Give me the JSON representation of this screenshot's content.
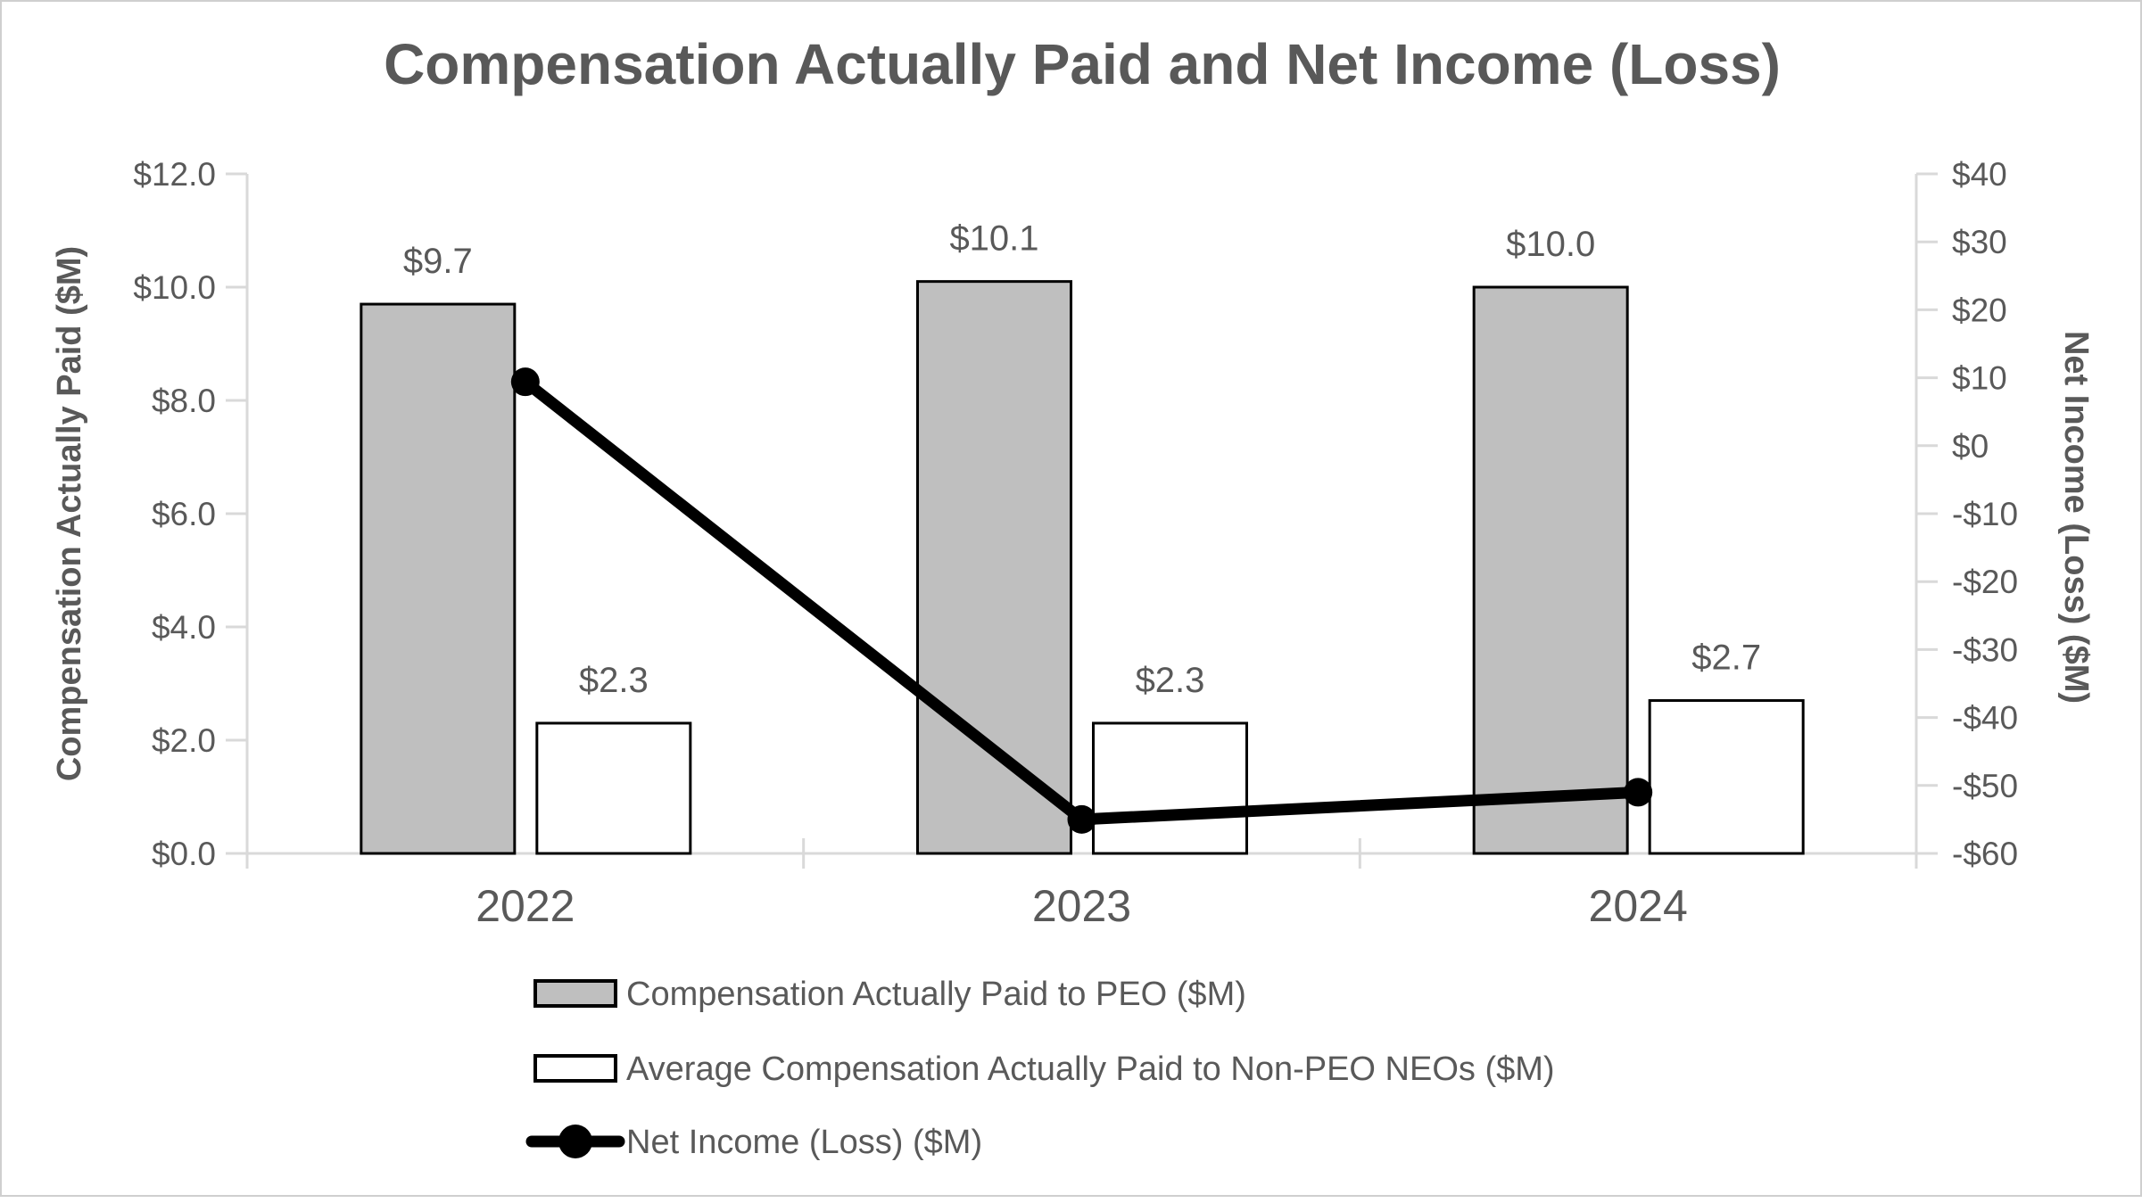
{
  "title": "Compensation Actually Paid and Net Income (Loss)",
  "colors": {
    "text": "#595959",
    "axis_line": "#d9d9d9",
    "bar_gray_fill": "#bfbfbf",
    "bar_white_fill": "#ffffff",
    "bar_border": "#000000",
    "line_color": "#000000",
    "background": "#ffffff"
  },
  "chart_data": {
    "type": "combo",
    "title": "Compensation Actually Paid and Net Income (Loss)",
    "categories": [
      "2022",
      "2023",
      "2024"
    ],
    "series": [
      {
        "name": "Compensation Actually Paid to PEO ($M)",
        "type": "bar",
        "axis": "left",
        "values": [
          9.7,
          10.1,
          10.0
        ],
        "labels": [
          "$9.7",
          "$10.1",
          "$10.0"
        ]
      },
      {
        "name": "Average Compensation Actually Paid to Non-PEO NEOs ($M)",
        "type": "bar",
        "axis": "left",
        "values": [
          2.3,
          2.3,
          2.7
        ],
        "labels": [
          "$2.3",
          "$2.3",
          "$2.7"
        ]
      },
      {
        "name": "Net Income (Loss) ($M)",
        "type": "line",
        "axis": "right",
        "values": [
          9.4,
          -55,
          -51
        ],
        "labels": []
      }
    ],
    "left_axis": {
      "title": "Compensation Actually Paid ($M)",
      "min": 0,
      "max": 12,
      "step": 2,
      "tick_labels": [
        "$12.0",
        "$10.0",
        "$8.0",
        "$6.0",
        "$4.0",
        "$2.0",
        "$0.0"
      ]
    },
    "right_axis": {
      "title": "Net Income (Loss) ($M)",
      "min": -60,
      "max": 40,
      "step": 10,
      "tick_labels": [
        "$40",
        "$30",
        "$20",
        "$10",
        "$0",
        "-$10",
        "-$20",
        "-$30",
        "-$40",
        "-$50",
        "-$60"
      ]
    },
    "grid": false,
    "legend_position": "bottom-left"
  }
}
